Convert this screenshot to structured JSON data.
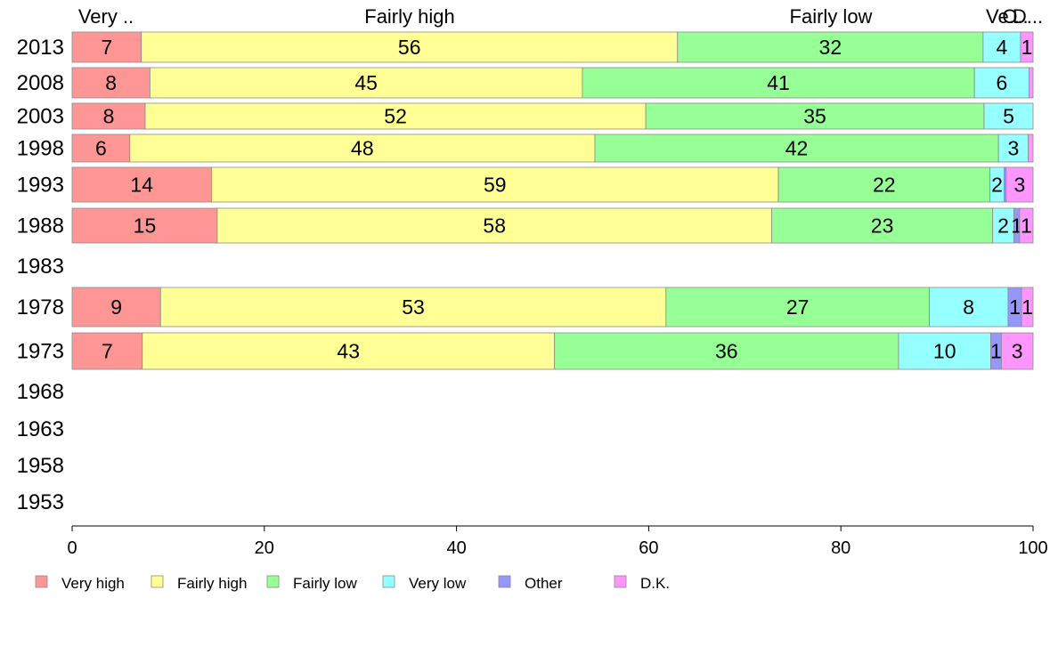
{
  "chart_data": {
    "type": "bar",
    "orientation": "horizontal",
    "stacked": true,
    "xlim": [
      0,
      100
    ],
    "x_ticks": [
      0,
      20,
      40,
      60,
      80,
      100
    ],
    "grid": false,
    "legend_position": "bottom",
    "top_labels": [
      "Very ..",
      "Fairly high",
      "Fairly low",
      "Ve..",
      "O..",
      "D..."
    ],
    "categories": [
      "2013",
      "2008",
      "2003",
      "1998",
      "1993",
      "1988",
      "1983",
      "1978",
      "1973",
      "1968",
      "1963",
      "1958",
      "1953"
    ],
    "series": [
      {
        "name": "Very high",
        "color": "#ff9696",
        "values": [
          7.2,
          8.1,
          7.6,
          6.0,
          14.5,
          15.1,
          null,
          9.2,
          7.3,
          null,
          null,
          null,
          null
        ]
      },
      {
        "name": "Fairly high",
        "color": "#ffff96",
        "values": [
          55.8,
          45.0,
          52.1,
          48.4,
          59.0,
          57.7,
          null,
          52.6,
          42.9,
          null,
          null,
          null,
          null
        ]
      },
      {
        "name": "Fairly low",
        "color": "#96ff96",
        "values": [
          31.8,
          40.8,
          35.2,
          42.0,
          22.0,
          23.0,
          null,
          27.4,
          35.8,
          null,
          null,
          null,
          null
        ]
      },
      {
        "name": "Very low",
        "color": "#96ffff",
        "values": [
          3.9,
          5.7,
          5.1,
          3.1,
          1.5,
          2.2,
          null,
          8.2,
          9.6,
          null,
          null,
          null,
          null
        ]
      },
      {
        "name": "Other",
        "color": "#9696ff",
        "values": [
          0,
          0,
          0,
          0,
          0.2,
          0.6,
          null,
          1.4,
          1.1,
          null,
          null,
          null,
          null
        ]
      },
      {
        "name": "D.K.",
        "color": "#ff96ff",
        "values": [
          1.3,
          0.4,
          0,
          0.5,
          2.8,
          1.4,
          null,
          1.2,
          3.3,
          null,
          null,
          null,
          null
        ]
      }
    ],
    "data_labels": [
      [
        "7",
        "56",
        "32",
        "4",
        "",
        "1"
      ],
      [
        "8",
        "45",
        "41",
        "6",
        "",
        ""
      ],
      [
        "8",
        "52",
        "35",
        "5",
        "",
        ""
      ],
      [
        "6",
        "48",
        "42",
        "3",
        "",
        ""
      ],
      [
        "14",
        "59",
        "22",
        "2",
        "",
        "3"
      ],
      [
        "15",
        "58",
        "23",
        "2",
        "1",
        "1"
      ],
      [],
      [
        "9",
        "53",
        "27",
        "8",
        "1",
        "1"
      ],
      [
        "7",
        "43",
        "36",
        "10",
        "1",
        "3"
      ],
      [],
      [],
      [],
      []
    ]
  }
}
